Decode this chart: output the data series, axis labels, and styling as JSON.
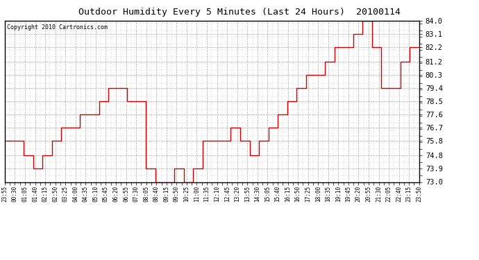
{
  "title": "Outdoor Humidity Every 5 Minutes (Last 24 Hours)  20100114",
  "copyright": "Copyright 2010 Cartronics.com",
  "line_color": "#cc0000",
  "bg_color": "#ffffff",
  "plot_bg_color": "#ffffff",
  "grid_color": "#aaaaaa",
  "ylim": [
    73.0,
    84.0
  ],
  "yticks": [
    73.0,
    73.9,
    74.8,
    75.8,
    76.7,
    77.6,
    78.5,
    79.4,
    80.3,
    81.2,
    82.2,
    83.1,
    84.0
  ],
  "x_labels": [
    "23:55",
    "00:30",
    "01:05",
    "01:40",
    "02:15",
    "02:50",
    "03:25",
    "04:00",
    "04:35",
    "05:10",
    "05:45",
    "06:20",
    "06:55",
    "07:30",
    "08:05",
    "08:40",
    "09:15",
    "09:50",
    "10:25",
    "11:00",
    "11:35",
    "12:10",
    "12:45",
    "13:20",
    "13:55",
    "14:30",
    "15:05",
    "15:40",
    "16:15",
    "16:50",
    "17:25",
    "18:00",
    "18:35",
    "19:10",
    "19:45",
    "20:20",
    "20:55",
    "21:30",
    "22:05",
    "22:40",
    "23:15",
    "23:50"
  ],
  "y_values": [
    75.8,
    75.8,
    74.8,
    73.9,
    74.8,
    75.8,
    76.7,
    76.7,
    77.6,
    77.6,
    78.5,
    79.4,
    79.4,
    78.5,
    78.5,
    73.9,
    73.0,
    73.0,
    73.9,
    73.0,
    73.9,
    75.8,
    75.8,
    75.8,
    76.7,
    75.8,
    74.8,
    75.8,
    76.7,
    77.6,
    78.5,
    79.4,
    80.3,
    80.3,
    81.2,
    82.2,
    82.2,
    83.1,
    84.0,
    82.2,
    79.4,
    79.4,
    81.2,
    82.2,
    82.2
  ]
}
